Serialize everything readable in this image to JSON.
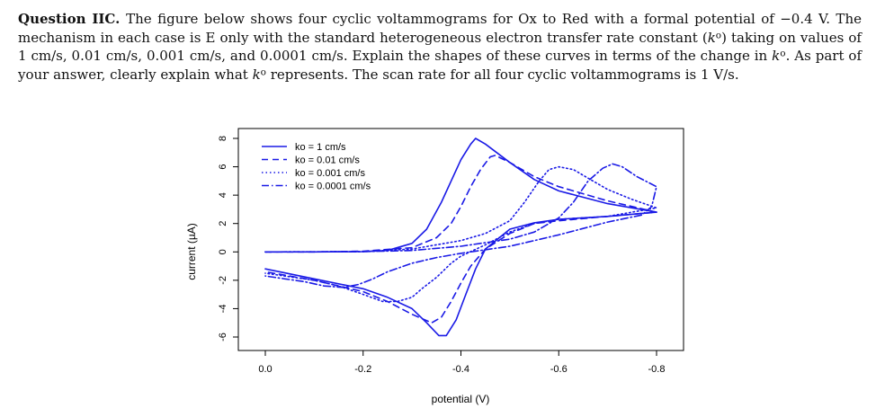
{
  "question": {
    "label": "Question IIC",
    "text_1": "The figure below shows four cyclic voltammograms for Ox to Red with a formal potential of −0.4 V. The mechanism in each case is E only with the standard heterogeneous electron transfer rate constant (",
    "k_symbol": "k",
    "degree": "o",
    "text_2": ") taking on values of 1 cm/s, 0.01 cm/s, 0.001 cm/s, and 0.0001 cm/s. Explain the shapes of these curves in terms of the change in ",
    "text_3": ". As part of your answer, clearly explain what ",
    "text_4": " represents. The scan rate for all four cyclic voltammograms is 1 V/s."
  },
  "chart_data": {
    "type": "line",
    "xlabel": "potential (V)",
    "ylabel": "current (µA)",
    "xlim": [
      0.0,
      -0.8
    ],
    "ylim": [
      -6,
      8
    ],
    "x_ticks": [
      "0.0",
      "-0.2",
      "-0.4",
      "-0.6",
      "-0.8"
    ],
    "x_tick_values": [
      0.0,
      -0.2,
      -0.4,
      -0.6,
      -0.8
    ],
    "y_ticks": [
      "-6",
      "-4",
      "-2",
      "0",
      "2",
      "4",
      "6",
      "8"
    ],
    "y_tick_values": [
      -6,
      -4,
      -2,
      0,
      2,
      4,
      6,
      8
    ],
    "grid": false,
    "legend_position": "top-left",
    "line_color": "#1a1ae6",
    "series": [
      {
        "name": "ko = 1 cm/s",
        "dash": "solid",
        "forward": [
          [
            0.0,
            0.0
          ],
          [
            -0.1,
            0.0
          ],
          [
            -0.2,
            0.02
          ],
          [
            -0.25,
            0.1
          ],
          [
            -0.3,
            0.6
          ],
          [
            -0.33,
            1.6
          ],
          [
            -0.36,
            3.5
          ],
          [
            -0.38,
            5.0
          ],
          [
            -0.4,
            6.5
          ],
          [
            -0.42,
            7.6
          ],
          [
            -0.43,
            8.0
          ],
          [
            -0.45,
            7.6
          ],
          [
            -0.5,
            6.3
          ],
          [
            -0.55,
            5.1
          ],
          [
            -0.6,
            4.3
          ],
          [
            -0.7,
            3.4
          ],
          [
            -0.8,
            2.8
          ]
        ],
        "reverse": [
          [
            -0.8,
            2.8
          ],
          [
            -0.7,
            2.5
          ],
          [
            -0.6,
            2.3
          ],
          [
            -0.55,
            2.05
          ],
          [
            -0.5,
            1.6
          ],
          [
            -0.45,
            0.2
          ],
          [
            -0.43,
            -1.2
          ],
          [
            -0.41,
            -3.0
          ],
          [
            -0.39,
            -4.8
          ],
          [
            -0.37,
            -5.9
          ],
          [
            -0.355,
            -5.9
          ],
          [
            -0.33,
            -5.0
          ],
          [
            -0.3,
            -4.0
          ],
          [
            -0.25,
            -3.2
          ],
          [
            -0.2,
            -2.6
          ],
          [
            -0.1,
            -1.9
          ],
          [
            0.0,
            -1.2
          ]
        ]
      },
      {
        "name": "ko = 0.01 cm/s",
        "dash": "dashed",
        "forward": [
          [
            0.0,
            0.0
          ],
          [
            -0.1,
            0.0
          ],
          [
            -0.2,
            0.05
          ],
          [
            -0.3,
            0.3
          ],
          [
            -0.35,
            1.0
          ],
          [
            -0.38,
            2.0
          ],
          [
            -0.4,
            3.2
          ],
          [
            -0.42,
            4.6
          ],
          [
            -0.44,
            5.8
          ],
          [
            -0.46,
            6.7
          ],
          [
            -0.47,
            6.8
          ],
          [
            -0.5,
            6.3
          ],
          [
            -0.55,
            5.3
          ],
          [
            -0.6,
            4.6
          ],
          [
            -0.7,
            3.6
          ],
          [
            -0.8,
            2.8
          ]
        ],
        "reverse": [
          [
            -0.8,
            2.8
          ],
          [
            -0.7,
            2.5
          ],
          [
            -0.6,
            2.2
          ],
          [
            -0.55,
            2.0
          ],
          [
            -0.5,
            1.3
          ],
          [
            -0.45,
            0.2
          ],
          [
            -0.42,
            -1.0
          ],
          [
            -0.4,
            -2.2
          ],
          [
            -0.38,
            -3.5
          ],
          [
            -0.36,
            -4.6
          ],
          [
            -0.34,
            -5.0
          ],
          [
            -0.3,
            -4.4
          ],
          [
            -0.25,
            -3.5
          ],
          [
            -0.2,
            -2.8
          ],
          [
            -0.1,
            -2.0
          ],
          [
            0.0,
            -1.4
          ]
        ]
      },
      {
        "name": "ko = 0.001 cm/s",
        "dash": "dotted",
        "forward": [
          [
            0.0,
            0.0
          ],
          [
            -0.2,
            0.02
          ],
          [
            -0.3,
            0.2
          ],
          [
            -0.4,
            0.8
          ],
          [
            -0.45,
            1.3
          ],
          [
            -0.5,
            2.2
          ],
          [
            -0.53,
            3.5
          ],
          [
            -0.56,
            5.0
          ],
          [
            -0.58,
            5.8
          ],
          [
            -0.6,
            6.0
          ],
          [
            -0.63,
            5.8
          ],
          [
            -0.67,
            5.0
          ],
          [
            -0.7,
            4.4
          ],
          [
            -0.75,
            3.7
          ],
          [
            -0.8,
            3.1
          ]
        ],
        "reverse": [
          [
            -0.8,
            3.1
          ],
          [
            -0.7,
            2.5
          ],
          [
            -0.6,
            2.3
          ],
          [
            -0.55,
            2.0
          ],
          [
            -0.5,
            1.4
          ],
          [
            -0.45,
            0.5
          ],
          [
            -0.4,
            -0.3
          ],
          [
            -0.38,
            -0.8
          ],
          [
            -0.35,
            -1.8
          ],
          [
            -0.32,
            -2.6
          ],
          [
            -0.3,
            -3.2
          ],
          [
            -0.27,
            -3.5
          ],
          [
            -0.24,
            -3.5
          ],
          [
            -0.2,
            -3.0
          ],
          [
            -0.15,
            -2.4
          ],
          [
            -0.1,
            -2.0
          ],
          [
            0.0,
            -1.5
          ]
        ]
      },
      {
        "name": "ko = 0.0001 cm/s",
        "dash": "dashdot",
        "forward": [
          [
            0.0,
            0.0
          ],
          [
            -0.2,
            0.02
          ],
          [
            -0.3,
            0.1
          ],
          [
            -0.4,
            0.4
          ],
          [
            -0.5,
            0.9
          ],
          [
            -0.55,
            1.4
          ],
          [
            -0.6,
            2.4
          ],
          [
            -0.63,
            3.5
          ],
          [
            -0.66,
            5.0
          ],
          [
            -0.69,
            5.9
          ],
          [
            -0.71,
            6.2
          ],
          [
            -0.73,
            6.0
          ],
          [
            -0.76,
            5.3
          ],
          [
            -0.8,
            4.6
          ]
        ],
        "reverse": [
          [
            -0.8,
            4.6
          ],
          [
            -0.79,
            3.2
          ],
          [
            -0.77,
            2.6
          ],
          [
            -0.7,
            2.1
          ],
          [
            -0.6,
            1.2
          ],
          [
            -0.55,
            0.8
          ],
          [
            -0.5,
            0.4
          ],
          [
            -0.45,
            0.15
          ],
          [
            -0.4,
            -0.1
          ],
          [
            -0.35,
            -0.4
          ],
          [
            -0.3,
            -0.8
          ],
          [
            -0.25,
            -1.4
          ],
          [
            -0.22,
            -1.9
          ],
          [
            -0.19,
            -2.3
          ],
          [
            -0.16,
            -2.5
          ],
          [
            -0.12,
            -2.4
          ],
          [
            -0.08,
            -2.1
          ],
          [
            -0.04,
            -1.9
          ],
          [
            0.0,
            -1.7
          ]
        ]
      }
    ]
  }
}
